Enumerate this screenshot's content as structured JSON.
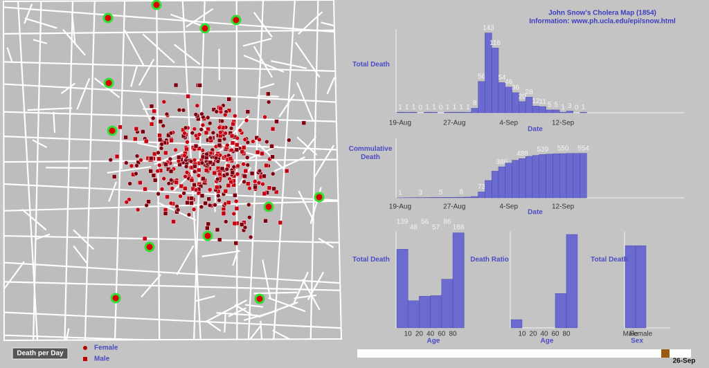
{
  "header": {
    "title": "John Snow's Cholera Map (1854)",
    "info": "Information: www.ph.ucla.edu/epi/snow.html"
  },
  "chart_data": [
    {
      "type": "bar",
      "y_label": "Total Death",
      "x_label": "Date",
      "color": "#6a6ad0",
      "ylim": [
        0,
        150
      ],
      "categories": [
        "19-Aug",
        null,
        null,
        null,
        null,
        null,
        null,
        null,
        "27-Aug",
        null,
        null,
        null,
        null,
        null,
        null,
        null,
        "4-Sep",
        null,
        null,
        null,
        null,
        null,
        null,
        null,
        "12-Sep",
        null,
        null,
        null
      ],
      "values": [
        1,
        1,
        1,
        0,
        1,
        1,
        0,
        1,
        1,
        1,
        1,
        8,
        56,
        143,
        116,
        54,
        46,
        36,
        20,
        28,
        12,
        11,
        5,
        5,
        1,
        3,
        0,
        1
      ]
    },
    {
      "type": "bar",
      "y_label": "Commulative Death",
      "x_label": "Date",
      "color": "#6a6ad0",
      "ylim": [
        0,
        740
      ],
      "categories": [
        "19-Aug",
        null,
        null,
        null,
        null,
        null,
        null,
        null,
        "27-Aug",
        null,
        null,
        null,
        null,
        null,
        null,
        null,
        "4-Sep",
        null,
        null,
        null,
        null,
        null,
        null,
        null,
        "12-Sep",
        null,
        null,
        null
      ],
      "values": [
        1,
        2,
        3,
        3,
        4,
        5,
        5,
        6,
        7,
        8,
        9,
        17,
        73,
        216,
        332,
        386,
        432,
        468,
        488,
        516,
        528,
        539,
        544,
        549,
        550,
        553,
        553,
        554
      ],
      "value_labels": [
        "1",
        null,
        null,
        "3",
        null,
        null,
        "5",
        null,
        null,
        "8",
        null,
        null,
        "73",
        null,
        null,
        "386",
        null,
        null,
        "488",
        null,
        null,
        "539",
        null,
        null,
        "550",
        null,
        null,
        "554"
      ]
    },
    {
      "type": "bar",
      "y_label": "Total Death",
      "x_label": "Age",
      "color": "#6a6ad0",
      "ylim": [
        0,
        170
      ],
      "xticks": [
        10,
        20,
        40,
        60,
        80
      ],
      "values": [
        139,
        48,
        56,
        57,
        86,
        168
      ]
    },
    {
      "type": "bar",
      "y_label": "Death Ratio",
      "x_label": "Age",
      "color": "#6a6ad0",
      "ylim": [
        0,
        0.7
      ],
      "xticks": [
        10,
        20,
        40,
        60,
        80
      ],
      "values": [
        0.06,
        0,
        0,
        0,
        0.25,
        0.68
      ]
    },
    {
      "type": "bar",
      "y_label": "Total Death",
      "x_label": "Sex",
      "color": "#6a6ad0",
      "ylim": [
        0,
        324
      ],
      "categories": [
        "Male",
        "Female"
      ],
      "values": [
        277,
        277
      ]
    }
  ],
  "legend": [
    "Female",
    "Male"
  ],
  "controls": {
    "button": "Death per Day",
    "slider_label": "26-Sep"
  }
}
